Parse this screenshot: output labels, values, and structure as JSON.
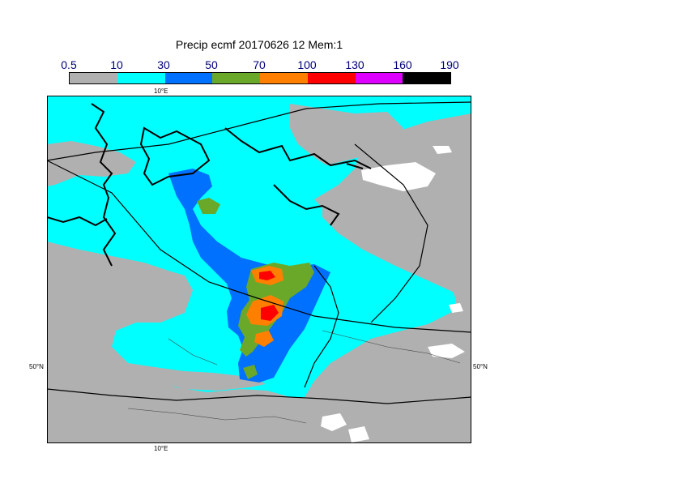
{
  "title": "Precip ecmf 20170626 12 Mem:1",
  "legend": {
    "labels": [
      "0.5",
      "10",
      "30",
      "50",
      "70",
      "100",
      "130",
      "160",
      "190"
    ],
    "colors": [
      "#b0b0b0",
      "#00ffff",
      "#0070ff",
      "#6aa82a",
      "#ff8000",
      "#ff0000",
      "#dd00ff",
      "#000000"
    ]
  },
  "axis_labels": {
    "lon_top": "10°E",
    "lon_bottom": "10°E",
    "lat_left": "50°N",
    "lat_right": "50°N"
  },
  "colors": {
    "land_sea_gray": "#b0b0b0",
    "cyan": "#00ffff",
    "blue": "#0070ff",
    "green": "#6aa82a",
    "orange": "#ff8000",
    "red": "#ff0000",
    "white": "#ffffff"
  }
}
